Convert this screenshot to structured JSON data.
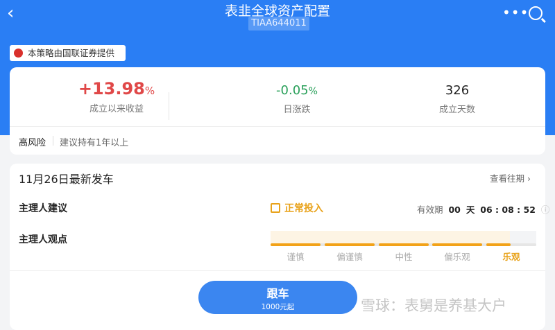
{
  "header": {
    "title": "表韭全球资产配置",
    "code": "TIAA644011"
  },
  "provider": "本策略由国联证券提供",
  "stats": [
    {
      "value": "+13.98",
      "unit": "%",
      "label": "成立以来收益",
      "color": "#e04848"
    },
    {
      "value": "-0.05",
      "unit": "%",
      "label": "日涨跌",
      "color": "#2aa05a"
    },
    {
      "value": "326",
      "unit": "",
      "label": "成立天数",
      "color": "#222222"
    }
  ],
  "risk": {
    "level": "高风险",
    "advice": "建议持有1年以上"
  },
  "launch": {
    "title": "11月26日最新发车",
    "history_link": "查看往期",
    "advice_label": "主理人建议",
    "advice_value": "正常投入",
    "validity_label": "有效期",
    "days": "00",
    "day_unit": "天",
    "time": "06 : 08 : 52",
    "view_label": "主理人观点",
    "view_levels": [
      "谨慎",
      "偏谨慎",
      "中性",
      "偏乐观",
      "乐观"
    ],
    "view_selected": "乐观",
    "view_level_fraction": 0.9
  },
  "follow": {
    "label": "跟车",
    "sub": "1000元起"
  },
  "watermark": "雪球：表舅是养基大户",
  "colors": {
    "brand": "#2a7ef4",
    "accent": "#f2a218"
  }
}
